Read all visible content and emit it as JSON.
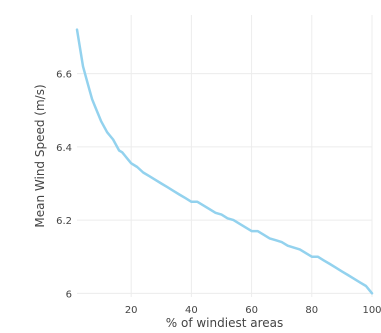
{
  "chart_data": {
    "type": "line",
    "xlabel": "% of windiest areas",
    "ylabel": "Mean Wind Speed (m/s)",
    "xlim": [
      2,
      100
    ],
    "ylim": [
      5.99,
      6.76
    ],
    "xticks": [
      "20",
      "40",
      "60",
      "80",
      "100"
    ],
    "yticks": [
      "6",
      "6.2",
      "6.4",
      "6.6"
    ],
    "grid": true,
    "series": [
      {
        "color": "#93d2ee",
        "x": [
          2,
          3,
          4,
          5,
          6,
          7,
          8,
          9,
          10,
          11,
          12,
          13,
          14,
          15,
          16,
          17,
          18,
          19,
          20,
          22,
          24,
          26,
          28,
          30,
          32,
          34,
          36,
          38,
          40,
          42,
          44,
          46,
          48,
          50,
          52,
          54,
          56,
          58,
          60,
          62,
          64,
          66,
          68,
          70,
          72,
          74,
          76,
          78,
          80,
          82,
          84,
          86,
          88,
          90,
          92,
          94,
          96,
          98,
          99,
          100
        ],
        "y": [
          6.72,
          6.67,
          6.62,
          6.59,
          6.56,
          6.53,
          6.51,
          6.49,
          6.47,
          6.455,
          6.44,
          6.43,
          6.42,
          6.405,
          6.39,
          6.385,
          6.375,
          6.365,
          6.355,
          6.345,
          6.33,
          6.32,
          6.31,
          6.3,
          6.29,
          6.28,
          6.27,
          6.26,
          6.25,
          6.25,
          6.24,
          6.23,
          6.22,
          6.215,
          6.205,
          6.2,
          6.19,
          6.18,
          6.17,
          6.17,
          6.16,
          6.15,
          6.145,
          6.14,
          6.13,
          6.125,
          6.12,
          6.11,
          6.1,
          6.1,
          6.09,
          6.08,
          6.07,
          6.06,
          6.05,
          6.04,
          6.03,
          6.02,
          6.01,
          6.0
        ]
      }
    ]
  }
}
